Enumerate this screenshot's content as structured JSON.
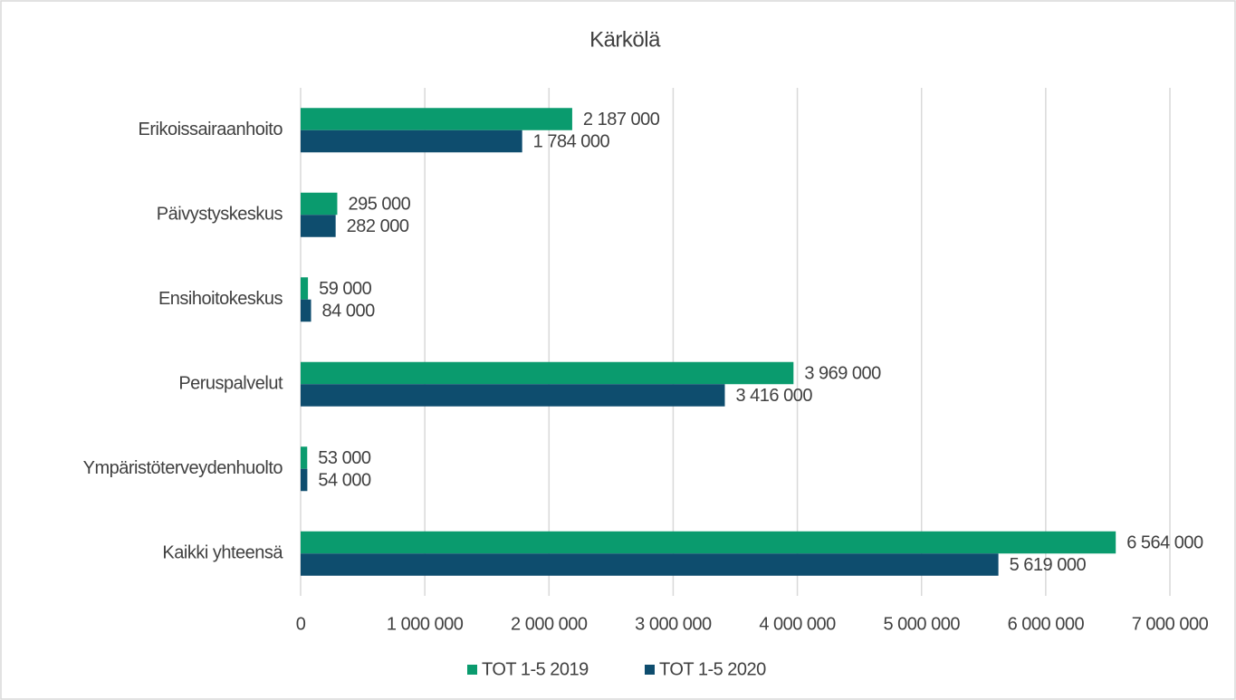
{
  "chart_data": {
    "type": "hbar",
    "title": "Kärkölä",
    "categories": [
      "Erikoissairaanhoito",
      "Päivystyskeskus",
      "Ensihoitokeskus",
      "Peruspalvelut",
      "Ympäristöterveydenhuolto",
      "Kaikki yhteensä"
    ],
    "series": [
      {
        "name": "TOT 1-5 2019",
        "color": "#0a9b6e",
        "values": [
          2187000,
          295000,
          59000,
          3969000,
          53000,
          6564000
        ],
        "value_labels": [
          "2 187 000",
          "295 000",
          "59 000",
          "3 969 000",
          "53 000",
          "6 564 000"
        ]
      },
      {
        "name": "TOT 1-5 2020",
        "color": "#0e4d6e",
        "values": [
          1784000,
          282000,
          84000,
          3416000,
          54000,
          5619000
        ],
        "value_labels": [
          "1 784 000",
          "282 000",
          "84 000",
          "3 416 000",
          "54 000",
          "5 619 000"
        ]
      }
    ],
    "xlim": [
      0,
      7000000
    ],
    "xticks": [
      0,
      {
        "value": 1000000,
        "label": "1 000 000"
      },
      {
        "value": 2000000,
        "label": "2 000 000"
      },
      {
        "value": 3000000,
        "label": "3 000 000"
      },
      {
        "value": 4000000,
        "label": "4 000 000"
      },
      {
        "value": 5000000,
        "label": "5 000 000"
      },
      {
        "value": 6000000,
        "label": "6 000 000"
      },
      {
        "value": 7000000,
        "label": "7 000 000"
      }
    ],
    "grid": true,
    "legend": "bottom"
  }
}
